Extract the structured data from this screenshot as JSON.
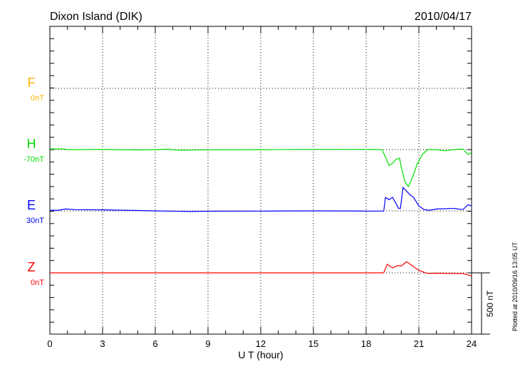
{
  "chart_data": {
    "type": "line",
    "title": "Dixon Island (DIK)",
    "date": "2010/04/17",
    "xlabel": "U T (hour)",
    "xlim": [
      0,
      24
    ],
    "xticks": [
      "0",
      "3",
      "6",
      "9",
      "12",
      "15",
      "18",
      "21",
      "24"
    ],
    "scale_label": "500 nT",
    "scale_nT": 500,
    "footnote": "Plotted at 2010/09/16 13:05 UT",
    "series": [
      {
        "name": "F",
        "offset_label": "0nT",
        "color": "#ffb000",
        "points": []
      },
      {
        "name": "H",
        "offset_label": "-70nT",
        "color": "#00e000",
        "points": [
          [
            0,
            5
          ],
          [
            0.8,
            5
          ],
          [
            1,
            0
          ],
          [
            3,
            2
          ],
          [
            5,
            -3
          ],
          [
            6,
            0
          ],
          [
            6.8,
            4
          ],
          [
            7,
            -2
          ],
          [
            7.5,
            -5
          ],
          [
            8,
            -4
          ],
          [
            9,
            -2
          ],
          [
            12,
            0
          ],
          [
            15,
            2
          ],
          [
            18,
            2
          ],
          [
            18.9,
            0
          ],
          [
            19.1,
            -60
          ],
          [
            19.3,
            -130
          ],
          [
            19.5,
            -110
          ],
          [
            19.7,
            -80
          ],
          [
            19.9,
            -70
          ],
          [
            20.0,
            -140
          ],
          [
            20.2,
            -260
          ],
          [
            20.4,
            -300
          ],
          [
            20.6,
            -240
          ],
          [
            20.9,
            -120
          ],
          [
            21.2,
            -40
          ],
          [
            21.5,
            0
          ],
          [
            22,
            0
          ],
          [
            22.5,
            -10
          ],
          [
            23,
            0
          ],
          [
            23.5,
            5
          ],
          [
            23.8,
            -40
          ],
          [
            24,
            -25
          ]
        ]
      },
      {
        "name": "E",
        "offset_label": "30nT",
        "color": "#0000ff",
        "points": [
          [
            0,
            5
          ],
          [
            0.5,
            5
          ],
          [
            0.9,
            15
          ],
          [
            1.5,
            10
          ],
          [
            3,
            8
          ],
          [
            5,
            3
          ],
          [
            6,
            0
          ],
          [
            8,
            -5
          ],
          [
            9,
            -3
          ],
          [
            12,
            -2
          ],
          [
            15,
            0
          ],
          [
            18,
            -2
          ],
          [
            19,
            -2
          ],
          [
            19.1,
            110
          ],
          [
            19.3,
            90
          ],
          [
            19.5,
            110
          ],
          [
            19.7,
            60
          ],
          [
            19.85,
            20
          ],
          [
            19.95,
            20
          ],
          [
            20.1,
            190
          ],
          [
            20.3,
            160
          ],
          [
            20.5,
            130
          ],
          [
            20.7,
            110
          ],
          [
            21,
            40
          ],
          [
            21.3,
            10
          ],
          [
            21.6,
            5
          ],
          [
            22,
            15
          ],
          [
            23,
            20
          ],
          [
            23.5,
            10
          ],
          [
            23.8,
            50
          ],
          [
            24,
            40
          ]
        ]
      },
      {
        "name": "Z",
        "offset_label": "0nT",
        "color": "#ff0000",
        "points": [
          [
            0,
            0
          ],
          [
            18,
            0
          ],
          [
            19,
            0
          ],
          [
            19.2,
            70
          ],
          [
            19.5,
            40
          ],
          [
            19.8,
            60
          ],
          [
            20,
            55
          ],
          [
            20.3,
            90
          ],
          [
            20.6,
            60
          ],
          [
            21,
            20
          ],
          [
            21.5,
            -5
          ],
          [
            22,
            -3
          ],
          [
            23,
            -5
          ],
          [
            23.5,
            -5
          ],
          [
            24,
            -25
          ]
        ]
      }
    ]
  }
}
